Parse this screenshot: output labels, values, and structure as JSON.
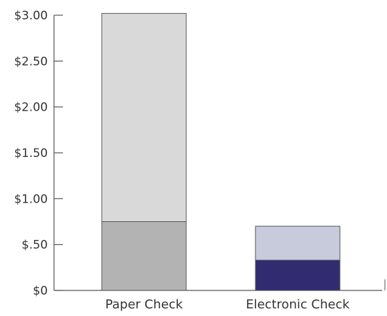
{
  "chart_data": {
    "type": "bar",
    "stacked": true,
    "categories": [
      "Paper Check",
      "Electronic Check"
    ],
    "series": [
      {
        "values": [
          0.75,
          0.33
        ],
        "colors": [
          "#b3b3b3",
          "#312c72"
        ]
      },
      {
        "values": [
          2.27,
          0.37
        ],
        "colors": [
          "#d9d9d9",
          "#c8cbdc"
        ]
      }
    ],
    "totals": [
      3.02,
      0.7
    ],
    "ylim": [
      0,
      3.0
    ],
    "yticks": [
      0,
      0.5,
      1.0,
      1.5,
      2.0,
      2.5,
      3.0
    ],
    "ytick_labels": [
      "$0",
      "$.50",
      "$1.00",
      "$1.50",
      "$2.00",
      "$2.50",
      "$3.00"
    ],
    "grid": false,
    "colors": {
      "axis": "#555555",
      "bar_outline": "#555555",
      "text": "#333333"
    }
  }
}
